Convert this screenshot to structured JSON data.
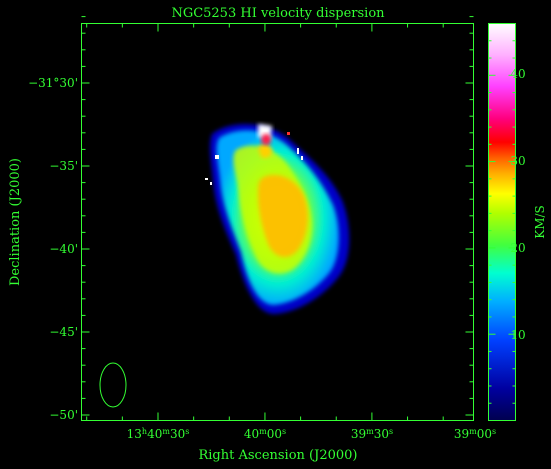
{
  "title": "NGC5253   HI velocity dispersion",
  "x_axis": {
    "label": "Right Ascension (J2000)",
    "ticks": [
      {
        "h": "13",
        "m": "40",
        "s": "30",
        "show_hours": true
      },
      {
        "h": "13",
        "m": "40",
        "s": "00",
        "show_hours": false
      },
      {
        "h": "13",
        "m": "39",
        "s": "30",
        "show_hours": false
      },
      {
        "h": "13",
        "m": "39",
        "s": "00",
        "show_hours": false
      }
    ]
  },
  "y_axis": {
    "label": "Declination (J2000)",
    "ticks": [
      "−31°30'",
      "−35'",
      "−40'",
      "−45'",
      "−50'"
    ]
  },
  "colorbar": {
    "label": "KM/S",
    "ticks": [
      "10",
      "20",
      "30",
      "40"
    ],
    "range": [
      0,
      46
    ]
  },
  "colors": {
    "axis": "#33ff33",
    "background": "#000000"
  },
  "beam": {
    "shape": "ellipse"
  }
}
